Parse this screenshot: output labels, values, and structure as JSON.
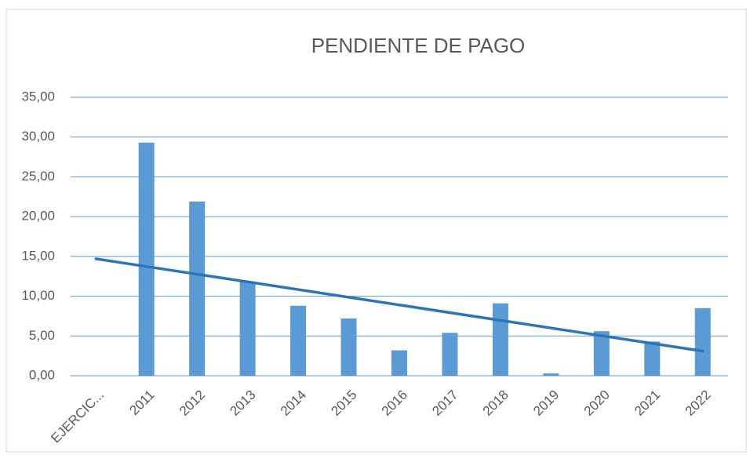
{
  "chart_data": {
    "type": "bar",
    "title": "PENDIENTE DE PAGO",
    "categories": [
      "EJERCIC...",
      "2011",
      "2012",
      "2013",
      "2014",
      "2015",
      "2016",
      "2017",
      "2018",
      "2019",
      "2020",
      "2021",
      "2022"
    ],
    "values": [
      null,
      29.3,
      21.9,
      11.8,
      8.8,
      7.2,
      3.2,
      5.4,
      9.1,
      0.3,
      5.6,
      4.3,
      8.5
    ],
    "color": "#5b9bd5",
    "trendline": {
      "color": "#2e75b6",
      "start": 14.7,
      "end": 3.1
    },
    "ylim": [
      0,
      35
    ],
    "yticks": [
      {
        "value": 0,
        "label": "0,00"
      },
      {
        "value": 5,
        "label": "5,00"
      },
      {
        "value": 10,
        "label": "10,00"
      },
      {
        "value": 15,
        "label": "15,00"
      },
      {
        "value": 20,
        "label": "20,00"
      },
      {
        "value": 25,
        "label": "25,00"
      },
      {
        "value": 30,
        "label": "30,00"
      },
      {
        "value": 35,
        "label": "35,00"
      }
    ],
    "grid": true
  }
}
